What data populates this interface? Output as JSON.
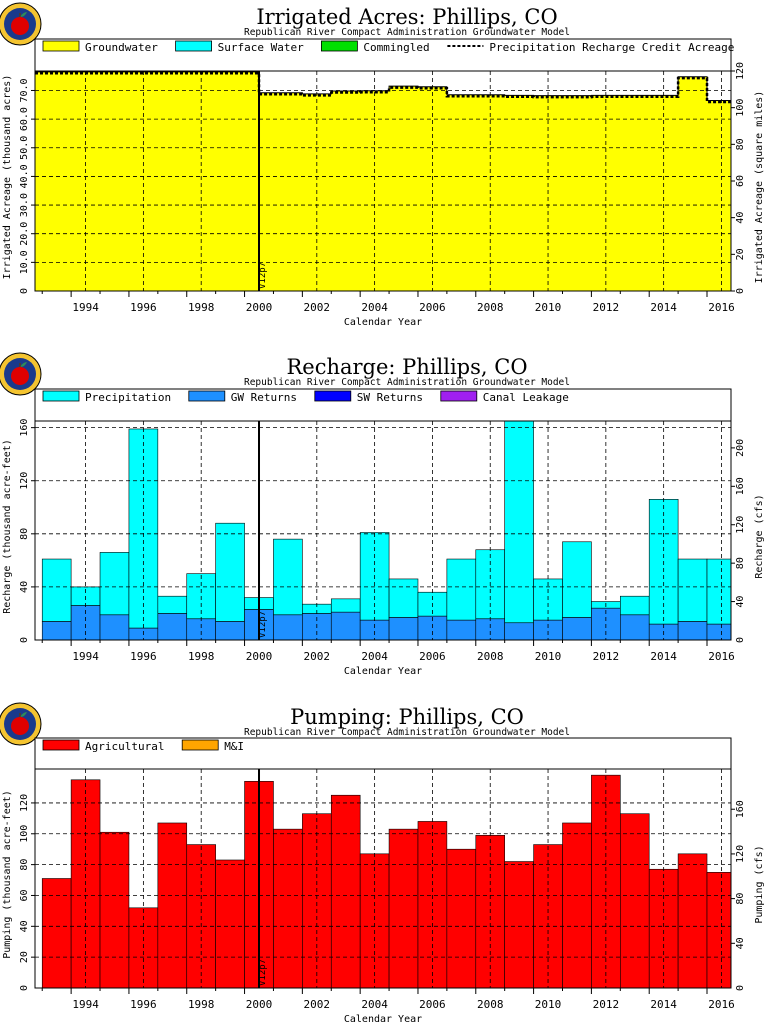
{
  "page": {
    "panels": [
      "irrigated",
      "recharge",
      "pumping"
    ]
  },
  "chart_data": [
    {
      "id": "irrigated",
      "type": "stepped-area",
      "title": "Irrigated Acres: Phillips, CO",
      "subtitle": "Republican River Compact Administration Groundwater Model",
      "xlabel": "Calendar Year",
      "ylabel": "Irrigated Acreage (thousand acres)",
      "y2label": "Irrigated Acreage (square miles)",
      "xlim": [
        1992.75,
        2016.83
      ],
      "ylim": [
        0,
        76.8
      ],
      "y2lim": [
        0,
        120
      ],
      "yticks": [
        10.0,
        20.0,
        30.0,
        40.0,
        50.0,
        60.0,
        70.0
      ],
      "y2ticks": [
        0,
        20.0,
        40.0,
        60.0,
        80.0,
        100,
        120
      ],
      "xticks": [
        "1994",
        "1996",
        "1998",
        "2000",
        "2002",
        "2004",
        "2006",
        "2008",
        "2010",
        "2012",
        "2014",
        "2016"
      ],
      "grid": true,
      "legend_position": "top",
      "legend": [
        {
          "label": "Groundwater",
          "color": "#ffff00",
          "style": "box"
        },
        {
          "label": "Surface Water",
          "color": "#00ffff",
          "style": "box"
        },
        {
          "label": "Commingled",
          "color": "#00e000",
          "style": "box"
        },
        {
          "label": "Precipitation Recharge Credit Acreage",
          "color": "#000000",
          "style": "dash"
        }
      ],
      "annotation": {
        "label": "V12p7",
        "x": 2000.5
      },
      "series": [
        {
          "name": "Groundwater",
          "color": "#ffff00",
          "x": [
            1992.75,
            1993,
            1994,
            1995,
            1996,
            1997,
            1998,
            1999,
            2000,
            2000.5,
            2001,
            2002,
            2003,
            2004,
            2005,
            2006,
            2007,
            2008,
            2009,
            2010,
            2011,
            2012,
            2013,
            2014,
            2015,
            2016
          ],
          "values": [
            76.5,
            76.5,
            76.5,
            76.5,
            76.5,
            76.5,
            76.5,
            76.5,
            76.5,
            69.2,
            69.2,
            68.8,
            69.8,
            69.9,
            71.5,
            71.3,
            68.5,
            68.5,
            68.3,
            68.2,
            68.2,
            68.3,
            68.3,
            68.3,
            74.8,
            66.5
          ]
        }
      ],
      "credit_line": {
        "x": [
          1992.75,
          1993,
          1994,
          1995,
          1996,
          1997,
          1998,
          1999,
          2000,
          2000.5,
          2001,
          2002,
          2003,
          2004,
          2005,
          2006,
          2007,
          2008,
          2009,
          2010,
          2011,
          2012,
          2013,
          2014,
          2015,
          2016
        ],
        "values": [
          76.0,
          76.0,
          76.0,
          76.0,
          76.0,
          76.0,
          76.0,
          76.0,
          76.0,
          68.7,
          68.7,
          68.3,
          69.3,
          69.4,
          71.0,
          70.8,
          68.0,
          68.0,
          67.8,
          67.7,
          67.7,
          67.8,
          67.8,
          67.8,
          74.3,
          66.0
        ]
      }
    },
    {
      "id": "recharge",
      "type": "stepped-stacked-bar",
      "title": "Recharge: Phillips, CO",
      "subtitle": "Republican River Compact Administration Groundwater Model",
      "xlabel": "Calendar Year",
      "ylabel": "Recharge (thousand acre-feet)",
      "y2label": "Recharge (cfs)",
      "xlim": [
        1992.75,
        2016.83
      ],
      "ylim": [
        0,
        165
      ],
      "y2lim": [
        0,
        228
      ],
      "yticks": [
        40,
        80,
        120,
        160
      ],
      "y2ticks": [
        40.0,
        80.0,
        120,
        160,
        200
      ],
      "xticks": [
        "1994",
        "1996",
        "1998",
        "2000",
        "2002",
        "2004",
        "2006",
        "2008",
        "2010",
        "2012",
        "2014",
        "2016"
      ],
      "grid": true,
      "legend_position": "top",
      "legend": [
        {
          "label": "Precipitation",
          "color": "#00ffff",
          "style": "box"
        },
        {
          "label": "GW Returns",
          "color": "#1e90ff",
          "style": "box"
        },
        {
          "label": "SW Returns",
          "color": "#0000ff",
          "style": "box"
        },
        {
          "label": "Canal Leakage",
          "color": "#a020f0",
          "style": "box"
        }
      ],
      "annotation": {
        "label": "V12p7",
        "x": 2000.5
      },
      "categories": [
        "1993",
        "1994",
        "1995",
        "1996",
        "1997",
        "1998",
        "1999",
        "2000",
        "2001",
        "2002",
        "2003",
        "2004",
        "2005",
        "2006",
        "2007",
        "2008",
        "2009",
        "2010",
        "2011",
        "2012",
        "2013",
        "2014",
        "2015",
        "2016"
      ],
      "series": [
        {
          "name": "GW Returns",
          "color": "#1e90ff",
          "values": [
            14,
            26,
            19,
            9,
            20,
            16,
            14,
            23,
            19,
            20,
            21,
            15,
            17,
            18,
            15,
            16,
            13,
            15,
            17,
            24,
            19,
            12,
            14,
            12
          ]
        },
        {
          "name": "Precipitation",
          "color": "#00ffff",
          "values": [
            47,
            14,
            47,
            150,
            13,
            34,
            74,
            9,
            57,
            7,
            10,
            66,
            29,
            18,
            46,
            52,
            152,
            31,
            57,
            5,
            14,
            94,
            47,
            49
          ]
        }
      ]
    },
    {
      "id": "pumping",
      "type": "stepped-bar",
      "title": "Pumping: Phillips, CO",
      "subtitle": "Republican River Compact Administration Groundwater Model",
      "xlabel": "Calendar Year",
      "ylabel": "Pumping (thousand acre-feet)",
      "y2label": "Pumping (cfs)",
      "xlim": [
        1992.75,
        2016.83
      ],
      "ylim": [
        0,
        142
      ],
      "y2lim": [
        0,
        196
      ],
      "yticks": [
        20.0,
        40.0,
        60.0,
        80.0,
        100,
        120
      ],
      "y2ticks": [
        40.0,
        80.0,
        120,
        160
      ],
      "xticks": [
        "1994",
        "1996",
        "1998",
        "2000",
        "2002",
        "2004",
        "2006",
        "2008",
        "2010",
        "2012",
        "2014",
        "2016"
      ],
      "grid": true,
      "legend_position": "top",
      "legend": [
        {
          "label": "Agricultural",
          "color": "#ff0000",
          "style": "box"
        },
        {
          "label": "M&I",
          "color": "#ffa500",
          "style": "box"
        }
      ],
      "annotation": {
        "label": "V12p7",
        "x": 2000.5
      },
      "categories": [
        "1993",
        "1994",
        "1995",
        "1996",
        "1997",
        "1998",
        "1999",
        "2000",
        "2001",
        "2002",
        "2003",
        "2004",
        "2005",
        "2006",
        "2007",
        "2008",
        "2009",
        "2010",
        "2011",
        "2012",
        "2013",
        "2014",
        "2015",
        "2016"
      ],
      "series": [
        {
          "name": "Agricultural",
          "color": "#ff0000",
          "values": [
            71,
            135,
            101,
            52,
            107,
            93,
            83,
            134,
            103,
            113,
            125,
            87,
            103,
            108,
            90,
            99,
            82,
            93,
            107,
            138,
            113,
            77,
            87,
            75
          ]
        }
      ]
    }
  ]
}
